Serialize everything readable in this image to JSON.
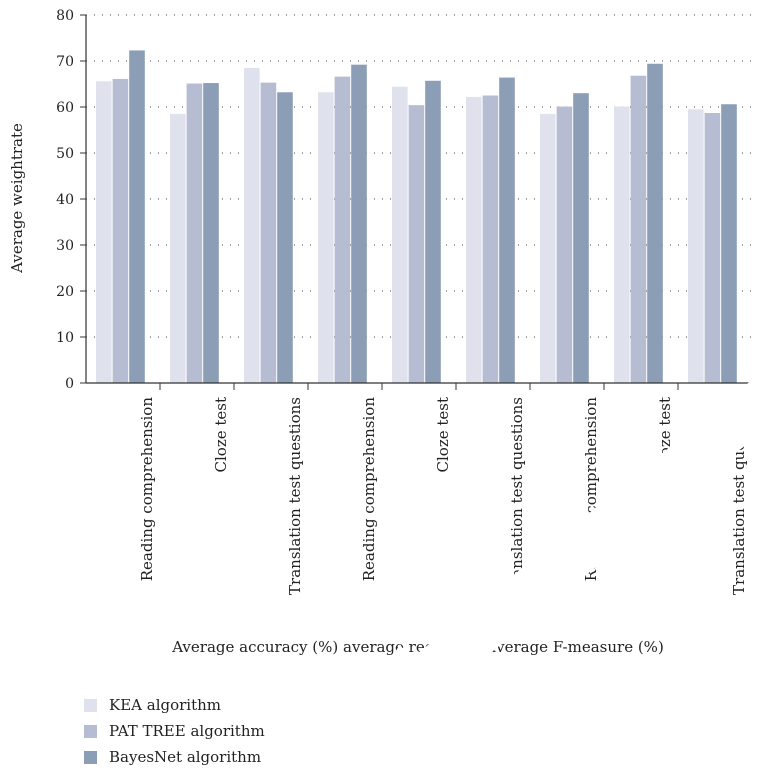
{
  "chart_data": {
    "type": "bar",
    "xlabel": "Average accuracy (%) average recall (%) average F-measure (%)",
    "ylabel": "Average weightrate",
    "ylim": [
      0,
      80
    ],
    "yticks": [
      0,
      10,
      20,
      30,
      40,
      50,
      60,
      70,
      80
    ],
    "grid": "dotted horizontal",
    "legend_position": "bottom-left",
    "categories": [
      "Reading comprehension",
      "Cloze test",
      "Translation test questions",
      "Reading comprehension",
      "Cloze test",
      "Translation test questions",
      "Reading comprehension",
      "Cloze test",
      "Translation test questions"
    ],
    "series": [
      {
        "name": "KEA algorithm",
        "color": "#dfe2ec",
        "values": [
          65.6,
          58.5,
          68.5,
          63.2,
          64.4,
          62.2,
          58.5,
          60.1,
          59.5
        ]
      },
      {
        "name": "PAT TREE algorithm",
        "color": "#b6bcd1",
        "values": [
          66.1,
          65.1,
          65.3,
          66.6,
          60.4,
          62.5,
          60.1,
          66.8,
          58.7
        ]
      },
      {
        "name": "BayesNet algorithm",
        "color": "#8c9db6",
        "values": [
          72.3,
          65.2,
          63.2,
          69.2,
          65.7,
          66.4,
          63.0,
          69.4,
          60.6
        ]
      }
    ]
  },
  "watermark": {
    "color": "#ffffff"
  }
}
